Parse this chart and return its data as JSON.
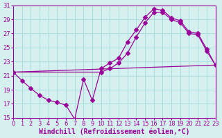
{
  "xlabel": "Windchill (Refroidissement éolien,°C)",
  "background_color": "#d6f0f0",
  "grid_color": "#aadddd",
  "line_color": "#990099",
  "xlim": [
    0,
    23
  ],
  "ylim": [
    15,
    31
  ],
  "xticks": [
    0,
    1,
    2,
    3,
    4,
    5,
    6,
    7,
    8,
    9,
    10,
    11,
    12,
    13,
    14,
    15,
    16,
    17,
    18,
    19,
    20,
    21,
    22,
    23
  ],
  "yticks": [
    15,
    17,
    19,
    21,
    23,
    25,
    27,
    29,
    31
  ],
  "line1_x": [
    0,
    1,
    2,
    3,
    4,
    5,
    6,
    7,
    8,
    9,
    10,
    11,
    12,
    13,
    14,
    15,
    16,
    17,
    18,
    19,
    20,
    21,
    22,
    23
  ],
  "line1_y": [
    21.5,
    20.3,
    19.2,
    18.2,
    17.5,
    17.2,
    16.8,
    14.8,
    20.5,
    17.5,
    22.0,
    22.8,
    23.5,
    25.8,
    27.5,
    29.3,
    30.5,
    30.3,
    29.2,
    28.8,
    27.2,
    27.0,
    24.8,
    22.5
  ],
  "line2_x": [
    0,
    10,
    11,
    12,
    13,
    14,
    15,
    16,
    17,
    18,
    19,
    20,
    21,
    22,
    23
  ],
  "line2_y": [
    21.5,
    21.5,
    22.0,
    22.8,
    24.2,
    26.5,
    28.5,
    30.0,
    30.0,
    29.0,
    28.5,
    27.0,
    26.8,
    24.5,
    22.5
  ],
  "line3_x": [
    0,
    23
  ],
  "line3_y": [
    21.5,
    22.5
  ],
  "marker": "D",
  "marker_size": 3,
  "tick_fontsize": 6,
  "xlabel_fontsize": 7
}
